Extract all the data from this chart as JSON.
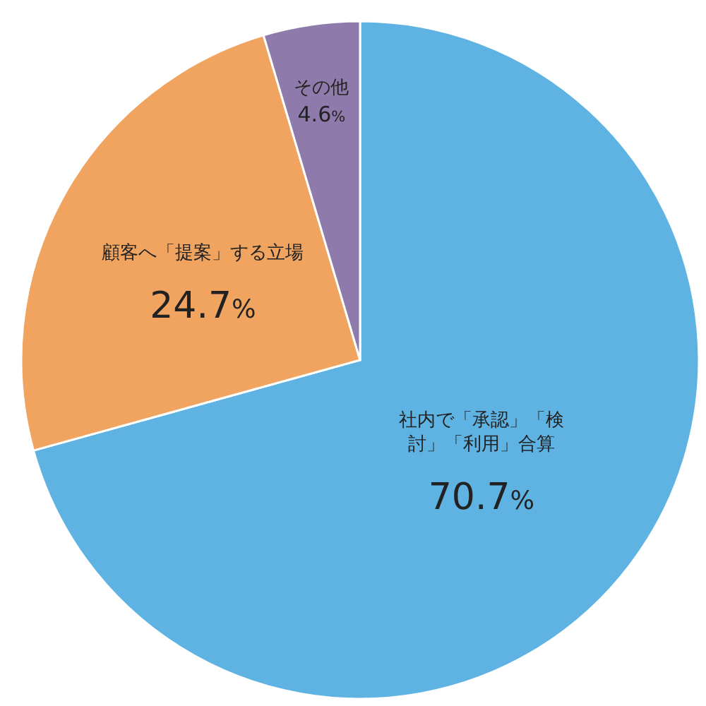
{
  "chart_data": {
    "type": "pie",
    "categories": [
      "社内で「承認」「検討」「利用」合算",
      "顧客へ「提案」する立場",
      "その他"
    ],
    "values": [
      70.7,
      24.7,
      4.6
    ],
    "colors": [
      "#5fb3e2",
      "#f0a460",
      "#8e7bab"
    ],
    "value_labels": [
      "70.7%",
      "24.7%",
      "4.6%"
    ]
  }
}
